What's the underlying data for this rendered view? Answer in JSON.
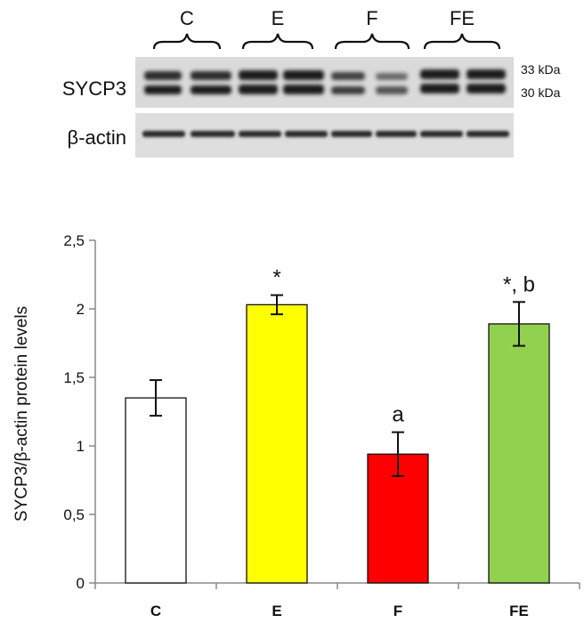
{
  "blot": {
    "groups": [
      "C",
      "E",
      "F",
      "FE"
    ],
    "rows": [
      {
        "label": "SYCP3",
        "bands": [
          "33 kDa",
          "30 kDa"
        ]
      },
      {
        "label": "β-actin",
        "bands": []
      }
    ]
  },
  "chart_data": {
    "type": "bar",
    "categories": [
      "C",
      "E",
      "F",
      "FE"
    ],
    "values": [
      1.35,
      2.03,
      0.94,
      1.89
    ],
    "errors": [
      0.13,
      0.07,
      0.16,
      0.16
    ],
    "annotations": [
      "",
      "*",
      "a",
      "*, b"
    ],
    "bar_colors": [
      "#ffffff",
      "#ffff00",
      "#ff0000",
      "#92d050"
    ],
    "ylabel": "SYCP3/β-actin protein levels",
    "xlabel": "",
    "ylim": [
      0,
      2.5
    ],
    "yticks": [
      "0",
      "0,5",
      "1",
      "1,5",
      "2",
      "2,5"
    ],
    "grid": false
  }
}
